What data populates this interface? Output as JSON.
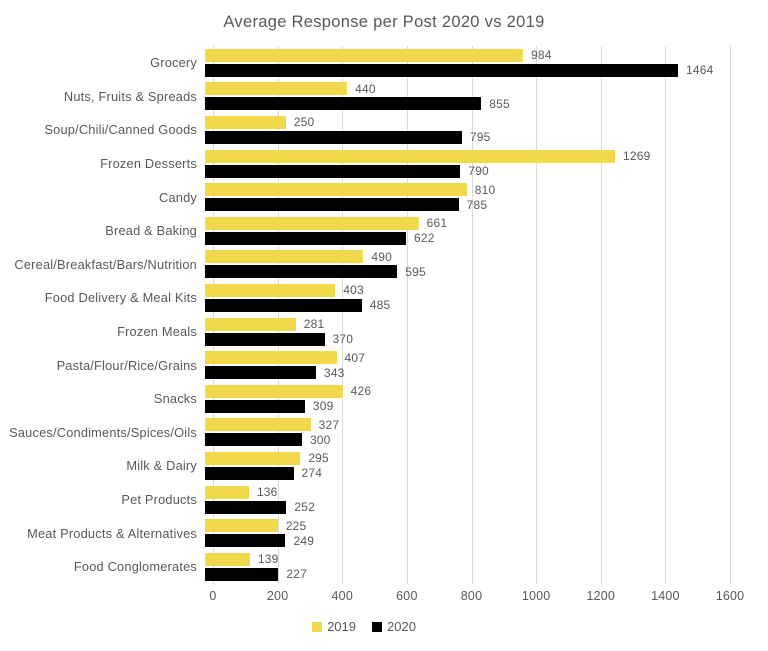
{
  "chart_data": {
    "type": "bar",
    "orientation": "horizontal",
    "title": "Average Response per Post 2020 vs 2019",
    "categories": [
      "Grocery",
      "Nuts, Fruits & Spreads",
      "Soup/Chili/Canned Goods",
      "Frozen Desserts",
      "Candy",
      "Bread & Baking",
      "Cereal/Breakfast/Bars/Nutrition",
      "Food Delivery & Meal Kits",
      "Frozen Meals",
      "Pasta/Flour/Rice/Grains",
      "Snacks",
      "Sauces/Condiments/Spices/Oils",
      "Milk & Dairy",
      "Pet Products",
      "Meat Products & Alternatives",
      "Food Conglomerates"
    ],
    "series": [
      {
        "name": "2019",
        "color": "#F2D84B",
        "values": [
          984,
          440,
          250,
          1269,
          810,
          661,
          490,
          403,
          281,
          407,
          426,
          327,
          295,
          136,
          225,
          139
        ]
      },
      {
        "name": "2020",
        "color": "#000000",
        "values": [
          1464,
          855,
          795,
          790,
          785,
          622,
          595,
          485,
          370,
          343,
          309,
          300,
          274,
          252,
          249,
          227
        ]
      }
    ],
    "xlim": [
      0,
      1600
    ],
    "x_ticks": [
      0,
      200,
      400,
      600,
      800,
      1000,
      1200,
      1400,
      1600
    ],
    "grid": true,
    "value_labels": true,
    "legend_position": "bottom"
  },
  "colors": {
    "text": "#595959",
    "grid": "#D9D9D9",
    "background": "#FFFFFF"
  }
}
